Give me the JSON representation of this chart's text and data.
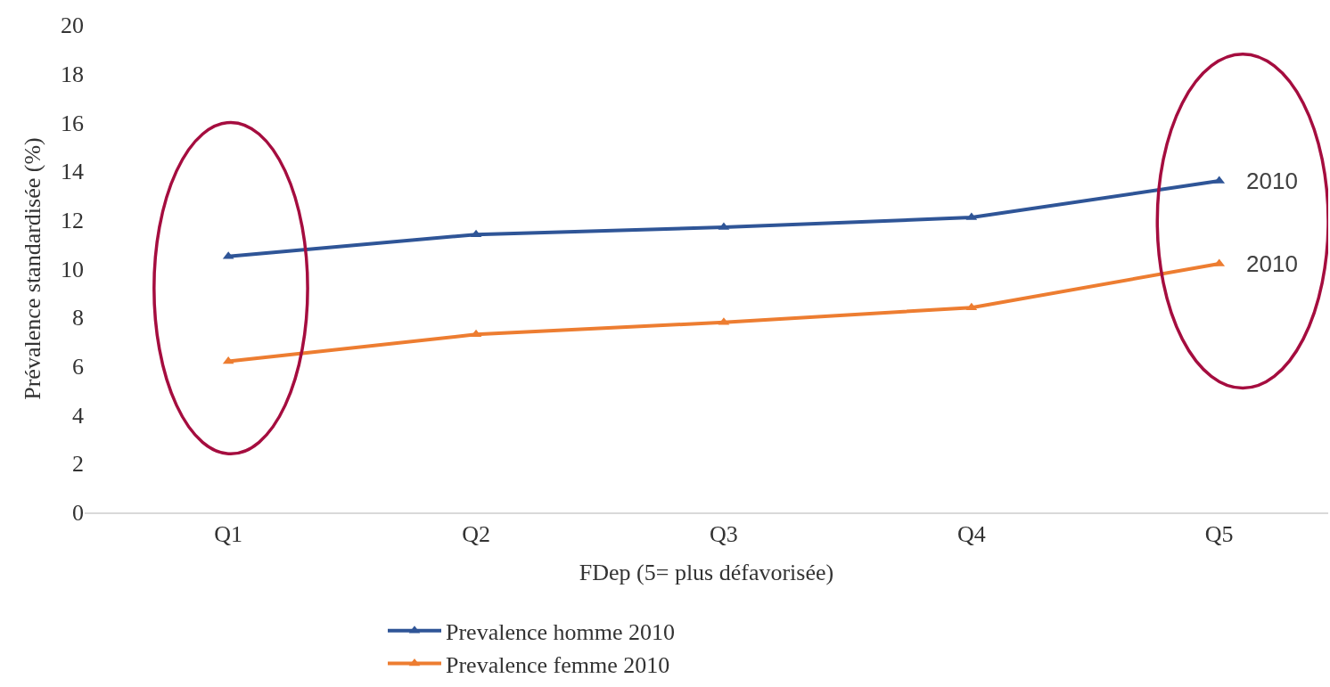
{
  "chart_data": {
    "type": "line",
    "xlabel": "FDep (5= plus défavorisée)",
    "ylabel": "Prévalence standardisée (%)",
    "categories": [
      "Q1",
      "Q2",
      "Q3",
      "Q4",
      "Q5"
    ],
    "series": [
      {
        "name": "Prevalence homme 2010",
        "color": "#2f5597",
        "values": [
          10.5,
          11.4,
          11.7,
          12.1,
          13.6
        ]
      },
      {
        "name": "Prevalence femme 2010",
        "color": "#ed7d31",
        "values": [
          6.2,
          7.3,
          7.8,
          8.4,
          10.2
        ]
      }
    ],
    "ylim": [
      0,
      20
    ],
    "yticks": [
      0,
      2,
      4,
      6,
      8,
      10,
      12,
      14,
      16,
      18,
      20
    ],
    "grid": false,
    "legend": "bottom",
    "marker": "triangle",
    "line_style": "solid",
    "annotations": [
      {
        "text": "2010",
        "x": "Q5",
        "y": 13.6
      },
      {
        "text": "2010",
        "x": "Q5",
        "y": 10.2
      }
    ]
  }
}
